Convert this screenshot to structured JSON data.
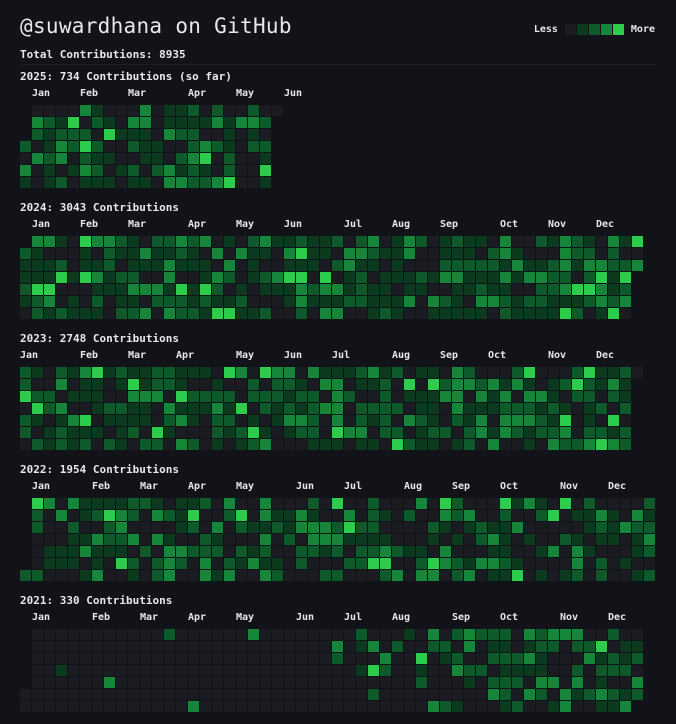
{
  "header": {
    "title": "@suwardhana on GitHub",
    "total": "Total Contributions: 8935"
  },
  "legend": {
    "less": "Less",
    "more": "More",
    "colors": [
      "#1a1c22",
      "#0c3a1e",
      "#0f5a2b",
      "#17863a",
      "#2dcc4d"
    ]
  },
  "years": [
    {
      "year": 2025,
      "title": "2025: 734 Contributions (so far)",
      "weeks": 22,
      "start_dow": 3,
      "end_dow": 0,
      "months": [
        {
          "label": "Jan",
          "week": 1
        },
        {
          "label": "Feb",
          "week": 5
        },
        {
          "label": "Mar",
          "week": 9
        },
        {
          "label": "Apr",
          "week": 14
        },
        {
          "label": "May",
          "week": 18
        },
        {
          "label": "Jun",
          "week": 22
        }
      ]
    },
    {
      "year": 2024,
      "title": "2024: 3043 Contributions",
      "weeks": 52,
      "start_dow": 1,
      "end_dow": 2,
      "months": [
        {
          "label": "Jan",
          "week": 1
        },
        {
          "label": "Feb",
          "week": 5
        },
        {
          "label": "Mar",
          "week": 9
        },
        {
          "label": "Apr",
          "week": 14
        },
        {
          "label": "May",
          "week": 18
        },
        {
          "label": "Jun",
          "week": 22
        },
        {
          "label": "Jul",
          "week": 27
        },
        {
          "label": "Aug",
          "week": 31
        },
        {
          "label": "Sep",
          "week": 35
        },
        {
          "label": "Oct",
          "week": 40
        },
        {
          "label": "Nov",
          "week": 44
        },
        {
          "label": "Dec",
          "week": 48
        }
      ]
    },
    {
      "year": 2023,
      "title": "2023: 2748 Contributions",
      "weeks": 52,
      "start_dow": 0,
      "end_dow": 0,
      "months": [
        {
          "label": "Jan",
          "week": 0
        },
        {
          "label": "Feb",
          "week": 5
        },
        {
          "label": "Mar",
          "week": 9
        },
        {
          "label": "Apr",
          "week": 13
        },
        {
          "label": "May",
          "week": 18
        },
        {
          "label": "Jun",
          "week": 22
        },
        {
          "label": "Jul",
          "week": 26
        },
        {
          "label": "Aug",
          "week": 31
        },
        {
          "label": "Sep",
          "week": 35
        },
        {
          "label": "Oct",
          "week": 39
        },
        {
          "label": "Nov",
          "week": 44
        },
        {
          "label": "Dec",
          "week": 48
        }
      ]
    },
    {
      "year": 2022,
      "title": "2022: 1954 Contributions",
      "weeks": 53,
      "start_dow": 6,
      "end_dow": 6,
      "months": [
        {
          "label": "Jan",
          "week": 1
        },
        {
          "label": "Feb",
          "week": 6
        },
        {
          "label": "Mar",
          "week": 10
        },
        {
          "label": "Apr",
          "week": 14
        },
        {
          "label": "May",
          "week": 18
        },
        {
          "label": "Jun",
          "week": 23
        },
        {
          "label": "Jul",
          "week": 27
        },
        {
          "label": "Aug",
          "week": 32
        },
        {
          "label": "Sep",
          "week": 36
        },
        {
          "label": "Oct",
          "week": 40
        },
        {
          "label": "Nov",
          "week": 45
        },
        {
          "label": "Dec",
          "week": 49
        }
      ]
    },
    {
      "year": 2021,
      "title": "2021: 330 Contributions",
      "weeks": 52,
      "start_dow": 5,
      "end_dow": 5,
      "months": [
        {
          "label": "Jan",
          "week": 1
        },
        {
          "label": "Feb",
          "week": 6
        },
        {
          "label": "Mar",
          "week": 10
        },
        {
          "label": "Apr",
          "week": 14
        },
        {
          "label": "May",
          "week": 18
        },
        {
          "label": "Jun",
          "week": 23
        },
        {
          "label": "Jul",
          "week": 27
        },
        {
          "label": "Aug",
          "week": 31
        },
        {
          "label": "Sep",
          "week": 36
        },
        {
          "label": "Oct",
          "week": 40
        },
        {
          "label": "Nov",
          "week": 45
        },
        {
          "label": "Dec",
          "week": 49
        }
      ]
    }
  ]
}
